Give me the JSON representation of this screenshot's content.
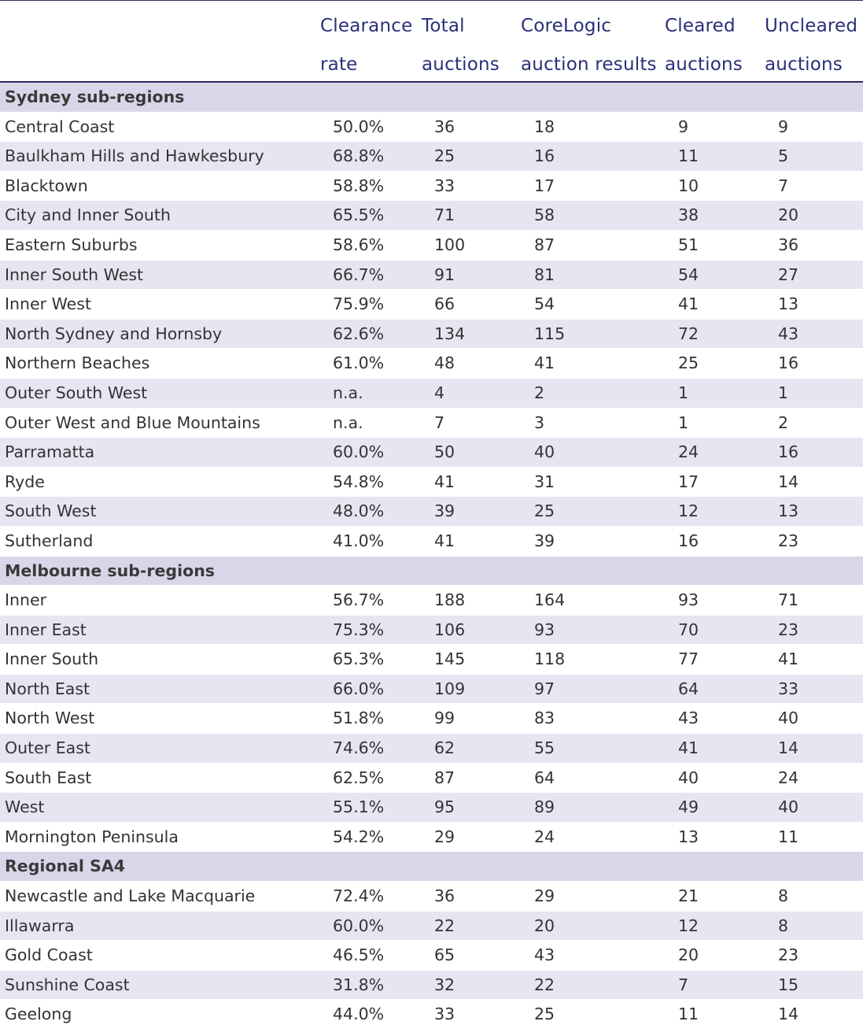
{
  "columns": [
    [
      "Clearance",
      "rate"
    ],
    [
      "Total",
      "auctions"
    ],
    [
      "CoreLogic",
      "auction results"
    ],
    [
      "Cleared",
      "auctions"
    ],
    [
      "Uncleared",
      "auctions"
    ]
  ],
  "sections": [
    {
      "title": "Sydney sub-regions",
      "rows": [
        [
          "Central Coast",
          "50.0%",
          "36",
          "18",
          "9",
          "9"
        ],
        [
          "Baulkham Hills and Hawkesbury",
          "68.8%",
          "25",
          "16",
          "11",
          "5"
        ],
        [
          "Blacktown",
          "58.8%",
          "33",
          "17",
          "10",
          "7"
        ],
        [
          "City and Inner South",
          "65.5%",
          "71",
          "58",
          "38",
          "20"
        ],
        [
          "Eastern Suburbs",
          "58.6%",
          "100",
          "87",
          "51",
          "36"
        ],
        [
          "Inner South West",
          "66.7%",
          "91",
          "81",
          "54",
          "27"
        ],
        [
          "Inner West",
          "75.9%",
          "66",
          "54",
          "41",
          "13"
        ],
        [
          "North Sydney and Hornsby",
          "62.6%",
          "134",
          "115",
          "72",
          "43"
        ],
        [
          "Northern Beaches",
          "61.0%",
          "48",
          "41",
          "25",
          "16"
        ],
        [
          "Outer South West",
          "n.a.",
          "4",
          "2",
          "1",
          "1"
        ],
        [
          "Outer West and Blue Mountains",
          "n.a.",
          "7",
          "3",
          "1",
          "2"
        ],
        [
          "Parramatta",
          "60.0%",
          "50",
          "40",
          "24",
          "16"
        ],
        [
          "Ryde",
          "54.8%",
          "41",
          "31",
          "17",
          "14"
        ],
        [
          "South West",
          "48.0%",
          "39",
          "25",
          "12",
          "13"
        ],
        [
          "Sutherland",
          "41.0%",
          "41",
          "39",
          "16",
          "23"
        ]
      ]
    },
    {
      "title": "Melbourne sub-regions",
      "rows": [
        [
          "Inner",
          "56.7%",
          "188",
          "164",
          "93",
          "71"
        ],
        [
          "Inner East",
          "75.3%",
          "106",
          "93",
          "70",
          "23"
        ],
        [
          "Inner South",
          "65.3%",
          "145",
          "118",
          "77",
          "41"
        ],
        [
          "North East",
          "66.0%",
          "109",
          "97",
          "64",
          "33"
        ],
        [
          "North West",
          "51.8%",
          "99",
          "83",
          "43",
          "40"
        ],
        [
          "Outer East",
          "74.6%",
          "62",
          "55",
          "41",
          "14"
        ],
        [
          "South East",
          "62.5%",
          "87",
          "64",
          "40",
          "24"
        ],
        [
          "West",
          "55.1%",
          "95",
          "89",
          "49",
          "40"
        ],
        [
          "Mornington Peninsula",
          "54.2%",
          "29",
          "24",
          "13",
          "11"
        ]
      ]
    },
    {
      "title": "Regional SA4",
      "rows": [
        [
          "Newcastle and Lake Macquarie",
          "72.4%",
          "36",
          "29",
          "21",
          "8"
        ],
        [
          "Illawarra",
          "60.0%",
          "22",
          "20",
          "12",
          "8"
        ],
        [
          "Gold Coast",
          "46.5%",
          "65",
          "43",
          "20",
          "23"
        ],
        [
          "Sunshine Coast",
          "31.8%",
          "32",
          "22",
          "7",
          "15"
        ],
        [
          "Geelong",
          "44.0%",
          "33",
          "25",
          "11",
          "14"
        ]
      ]
    }
  ]
}
